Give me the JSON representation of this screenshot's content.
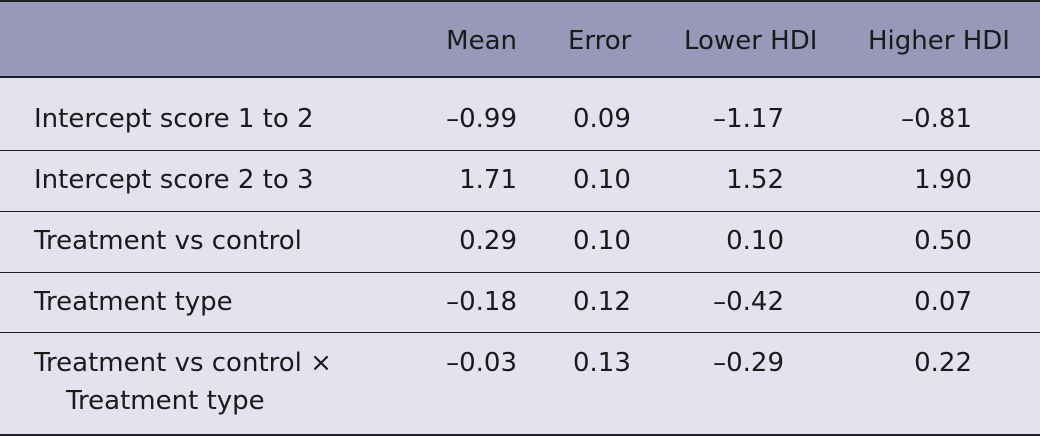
{
  "table": {
    "headers": [
      "",
      "Mean",
      "Error",
      "Lower HDI",
      "Higher HDI"
    ],
    "rows": [
      {
        "label": "Intercept score 1 to 2",
        "label_cont": "",
        "mean": "–0.99",
        "error": "0.09",
        "lower": "–1.17",
        "higher": "–0.81"
      },
      {
        "label": "Intercept score 2 to 3",
        "label_cont": "",
        "mean": "1.71",
        "error": "0.10",
        "lower": "1.52",
        "higher": "1.90"
      },
      {
        "label": "Treatment vs control",
        "label_cont": "",
        "mean": "0.29",
        "error": "0.10",
        "lower": "0.10",
        "higher": "0.50"
      },
      {
        "label": "Treatment type",
        "label_cont": "",
        "mean": "–0.18",
        "error": "0.12",
        "lower": "–0.42",
        "higher": "0.07"
      },
      {
        "label": "Treatment vs control ×",
        "label_cont": "Treatment type",
        "mean": "–0.03",
        "error": "0.13",
        "lower": "–0.29",
        "higher": "0.22"
      }
    ]
  }
}
